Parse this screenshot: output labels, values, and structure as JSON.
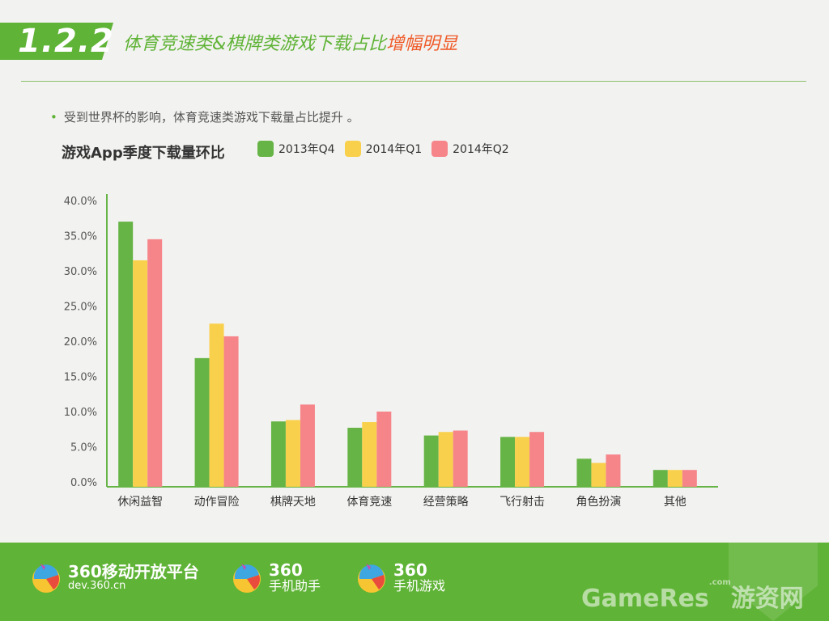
{
  "header": {
    "section_number": "1.2.2",
    "title_main": "体育竞速类&棋牌类游戏下载占比",
    "title_highlight": "增幅明显"
  },
  "bullet": {
    "text": "受到世界杯的影响，体育竞速类游戏下载量占比提升 。"
  },
  "chart_data": {
    "type": "bar",
    "title": "游戏App季度下载量环比",
    "categories": [
      "休闲益智",
      "动作冒险",
      "棋牌天地",
      "体育竞速",
      "经营策略",
      "飞行射击",
      "角色扮演",
      "其他"
    ],
    "series": [
      {
        "name": "2013年Q4",
        "color": "#67b446",
        "values": [
          37.0,
          17.6,
          8.6,
          7.7,
          6.6,
          6.4,
          3.3,
          1.7
        ]
      },
      {
        "name": "2014年Q1",
        "color": "#f9d04b",
        "values": [
          31.5,
          22.5,
          8.8,
          8.5,
          7.1,
          6.4,
          2.7,
          1.7
        ]
      },
      {
        "name": "2014年Q2",
        "color": "#f6858a",
        "values": [
          34.5,
          20.7,
          11.0,
          10.0,
          7.3,
          7.1,
          3.9,
          1.7
        ]
      }
    ],
    "ylim": [
      0,
      40
    ],
    "yticks": [
      "0.0%",
      "5.0%",
      "10.0%",
      "15.0%",
      "20.0%",
      "25.0%",
      "30.0%",
      "35.0%",
      "40.0%"
    ],
    "xlabel": "",
    "ylabel": "",
    "legend_position": "top"
  },
  "footer": {
    "brands": [
      {
        "line1": "360移动开放平台",
        "line2": "dev.360.cn"
      },
      {
        "line1": "360",
        "line2": "手机助手"
      },
      {
        "line1": "360",
        "line2": "手机游戏"
      }
    ],
    "watermark": "GameRes",
    "watermark_small": ".com",
    "watermark_cn": "游资网"
  },
  "colors": {
    "brand_green": "#5fb336",
    "accent_orange": "#ef5a28"
  }
}
